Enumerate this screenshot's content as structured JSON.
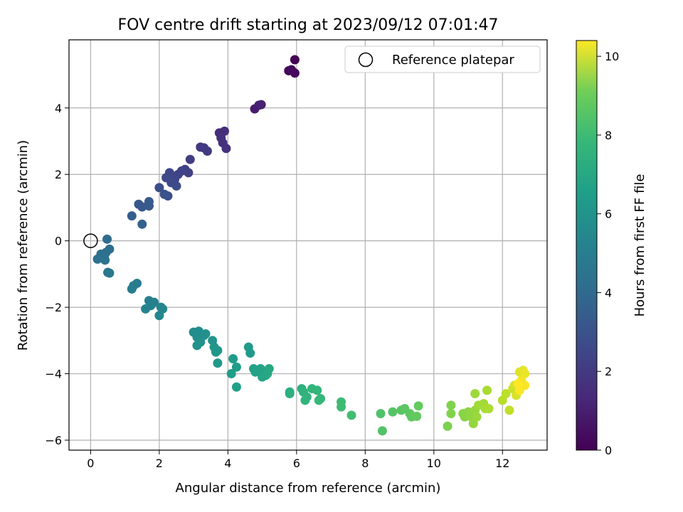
{
  "chart_data": {
    "type": "scatter",
    "title": "FOV centre drift starting at 2023/09/12 07:01:47",
    "xlabel": "Angular distance from reference (arcmin)",
    "ylabel": "Rotation from reference (arcmin)",
    "xlim": [
      -0.63,
      13.3
    ],
    "ylim": [
      -6.3,
      6.05
    ],
    "x_ticks": [
      0,
      2,
      4,
      6,
      8,
      10,
      12
    ],
    "y_ticks": [
      -6,
      -4,
      -2,
      0,
      2,
      4
    ],
    "x_tick_labels": [
      "0",
      "2",
      "4",
      "6",
      "8",
      "10",
      "12"
    ],
    "y_tick_labels": [
      "−6",
      "−4",
      "−2",
      "0",
      "2",
      "4"
    ],
    "grid": true,
    "legend": {
      "position": "top-right",
      "entries": [
        "Reference platepar"
      ]
    },
    "reference_point": {
      "x": 0,
      "y": 0,
      "label": "Reference platepar"
    },
    "colorbar": {
      "label": "Hours from first FF file",
      "range": [
        0,
        10.4
      ],
      "ticks": [
        0,
        2,
        4,
        6,
        8,
        10
      ],
      "tick_labels": [
        "0",
        "2",
        "4",
        "6",
        "8",
        "10"
      ],
      "colormap": "viridis"
    },
    "series": [
      {
        "values_format": "[x_arcmin, y_arcmin, hours]",
        "points": [
          [
            5.95,
            5.45,
            0.0
          ],
          [
            5.77,
            5.12,
            0.1
          ],
          [
            5.95,
            5.05,
            0.2
          ],
          [
            5.85,
            5.15,
            0.3
          ],
          [
            4.78,
            3.97,
            0.8
          ],
          [
            4.9,
            4.08,
            0.9
          ],
          [
            4.97,
            4.1,
            1.0
          ],
          [
            3.75,
            3.25,
            1.3
          ],
          [
            3.9,
            3.3,
            1.35
          ],
          [
            3.8,
            3.1,
            1.4
          ],
          [
            3.85,
            2.95,
            1.45
          ],
          [
            3.95,
            2.78,
            1.5
          ],
          [
            3.2,
            2.82,
            1.7
          ],
          [
            3.3,
            2.8,
            1.75
          ],
          [
            3.4,
            2.7,
            1.8
          ],
          [
            2.9,
            2.45,
            1.9
          ],
          [
            2.85,
            2.05,
            2.0
          ],
          [
            2.75,
            2.15,
            2.05
          ],
          [
            2.65,
            2.1,
            2.1
          ],
          [
            2.55,
            2.0,
            2.15
          ],
          [
            2.45,
            1.85,
            2.2
          ],
          [
            2.3,
            2.05,
            2.25
          ],
          [
            2.2,
            1.9,
            2.3
          ],
          [
            2.35,
            1.75,
            2.35
          ],
          [
            2.5,
            1.65,
            2.4
          ],
          [
            2.0,
            1.6,
            2.5
          ],
          [
            2.25,
            1.35,
            2.55
          ],
          [
            2.15,
            1.4,
            2.6
          ],
          [
            1.4,
            1.1,
            2.8
          ],
          [
            1.5,
            1.02,
            2.85
          ],
          [
            1.7,
            1.05,
            2.9
          ],
          [
            1.7,
            1.18,
            2.95
          ],
          [
            1.2,
            0.75,
            3.1
          ],
          [
            1.5,
            0.5,
            3.2
          ],
          [
            0.48,
            0.05,
            3.6
          ],
          [
            0.55,
            -0.25,
            3.7
          ],
          [
            0.45,
            -0.35,
            3.75
          ],
          [
            0.4,
            -0.45,
            3.8
          ],
          [
            0.3,
            -0.4,
            3.85
          ],
          [
            0.2,
            -0.55,
            3.9
          ],
          [
            0.42,
            -0.58,
            3.95
          ],
          [
            0.5,
            -0.95,
            4.1
          ],
          [
            0.55,
            -0.97,
            4.15
          ],
          [
            1.35,
            -1.28,
            4.3
          ],
          [
            1.25,
            -1.35,
            4.35
          ],
          [
            1.2,
            -1.45,
            4.4
          ],
          [
            1.7,
            -1.8,
            4.5
          ],
          [
            1.85,
            -1.85,
            4.55
          ],
          [
            1.75,
            -1.95,
            4.6
          ],
          [
            1.6,
            -2.05,
            4.65
          ],
          [
            2.05,
            -2.0,
            4.7
          ],
          [
            2.1,
            -2.05,
            4.75
          ],
          [
            2.0,
            -2.25,
            4.8
          ],
          [
            3.0,
            -2.75,
            5.0
          ],
          [
            3.15,
            -2.72,
            5.05
          ],
          [
            3.1,
            -2.9,
            5.1
          ],
          [
            3.3,
            -2.85,
            5.15
          ],
          [
            3.35,
            -2.8,
            5.2
          ],
          [
            3.2,
            -3.05,
            5.25
          ],
          [
            3.1,
            -3.15,
            5.3
          ],
          [
            3.55,
            -3.0,
            5.35
          ],
          [
            3.6,
            -3.2,
            5.4
          ],
          [
            3.7,
            -3.3,
            5.45
          ],
          [
            3.65,
            -3.35,
            5.5
          ],
          [
            3.7,
            -3.68,
            5.55
          ],
          [
            4.6,
            -3.2,
            5.6
          ],
          [
            4.65,
            -3.38,
            5.65
          ],
          [
            4.15,
            -3.55,
            5.7
          ],
          [
            4.25,
            -3.8,
            5.75
          ],
          [
            4.1,
            -4.0,
            5.8
          ],
          [
            4.25,
            -4.4,
            5.85
          ],
          [
            4.75,
            -3.85,
            5.9
          ],
          [
            4.8,
            -3.95,
            5.95
          ],
          [
            4.95,
            -3.85,
            6.0
          ],
          [
            5.05,
            -4.0,
            6.05
          ],
          [
            5.0,
            -4.1,
            6.1
          ],
          [
            5.1,
            -4.05,
            6.15
          ],
          [
            5.2,
            -3.85,
            6.2
          ],
          [
            5.15,
            -4.0,
            6.25
          ],
          [
            5.8,
            -4.55,
            6.5
          ],
          [
            5.8,
            -4.6,
            6.55
          ],
          [
            6.15,
            -4.45,
            6.6
          ],
          [
            6.2,
            -4.55,
            6.65
          ],
          [
            6.3,
            -4.7,
            6.7
          ],
          [
            6.25,
            -4.8,
            6.75
          ],
          [
            6.45,
            -4.45,
            6.8
          ],
          [
            6.6,
            -4.5,
            6.85
          ],
          [
            6.7,
            -4.75,
            6.9
          ],
          [
            6.65,
            -4.8,
            6.95
          ],
          [
            7.3,
            -4.85,
            7.1
          ],
          [
            7.3,
            -5.0,
            7.15
          ],
          [
            7.6,
            -5.25,
            7.2
          ],
          [
            8.45,
            -5.2,
            7.5
          ],
          [
            8.5,
            -5.72,
            7.55
          ],
          [
            8.8,
            -5.15,
            7.6
          ],
          [
            9.05,
            -5.1,
            7.65
          ],
          [
            9.15,
            -5.05,
            7.7
          ],
          [
            9.3,
            -5.2,
            7.75
          ],
          [
            9.35,
            -5.3,
            7.8
          ],
          [
            9.5,
            -5.28,
            7.85
          ],
          [
            9.55,
            -4.97,
            7.9
          ],
          [
            10.4,
            -5.58,
            8.3
          ],
          [
            10.5,
            -4.95,
            8.35
          ],
          [
            10.5,
            -5.2,
            8.4
          ],
          [
            10.85,
            -5.2,
            8.5
          ],
          [
            10.9,
            -5.3,
            8.55
          ],
          [
            11.0,
            -5.15,
            8.6
          ],
          [
            11.1,
            -5.3,
            8.65
          ],
          [
            11.15,
            -5.5,
            8.7
          ],
          [
            11.2,
            -5.1,
            8.75
          ],
          [
            11.25,
            -5.3,
            8.8
          ],
          [
            11.2,
            -4.6,
            8.85
          ],
          [
            11.3,
            -4.95,
            8.9
          ],
          [
            11.45,
            -4.9,
            8.95
          ],
          [
            11.5,
            -5.05,
            9.0
          ],
          [
            11.55,
            -4.5,
            9.05
          ],
          [
            11.6,
            -5.05,
            9.1
          ],
          [
            12.0,
            -4.8,
            9.3
          ],
          [
            12.1,
            -4.6,
            9.35
          ],
          [
            12.2,
            -5.1,
            9.4
          ],
          [
            12.3,
            -4.45,
            9.6
          ],
          [
            12.35,
            -4.35,
            9.7
          ],
          [
            12.4,
            -4.65,
            9.8
          ],
          [
            12.5,
            -3.95,
            9.9
          ],
          [
            12.6,
            -3.9,
            10.0
          ],
          [
            12.65,
            -4.0,
            10.1
          ],
          [
            12.55,
            -4.2,
            10.2
          ],
          [
            12.65,
            -4.35,
            10.3
          ],
          [
            12.5,
            -4.5,
            10.35
          ],
          [
            12.45,
            -4.3,
            10.4
          ]
        ]
      }
    ]
  }
}
